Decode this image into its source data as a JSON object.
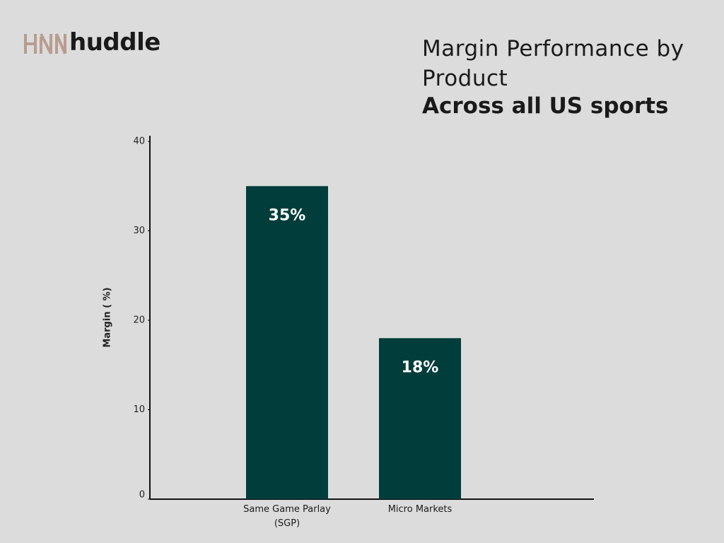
{
  "brand": "huddle",
  "chart_data": {
    "type": "bar",
    "title": "Margin Performance by Product",
    "subtitle": "Across all US sports",
    "y_label": "Margin ( %)",
    "categories": [
      "Same Game Parlay (SGP)",
      "Micro Markets"
    ],
    "values": [
      35,
      18
    ],
    "value_labels": [
      "35%",
      "18%"
    ],
    "color": "#003d3b",
    "ylim": [
      0,
      40
    ],
    "yticks": [
      0,
      10,
      20,
      30,
      40
    ],
    "grid": false
  }
}
